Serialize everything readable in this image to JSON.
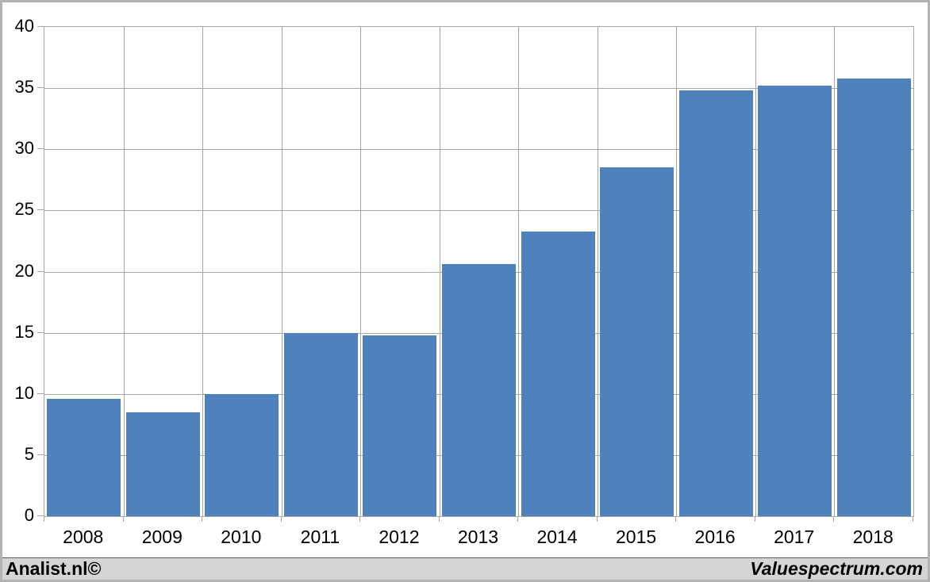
{
  "footer": {
    "left_brand": "Analist.nl©",
    "right_brand": "Valuespectrum.com"
  },
  "chart_data": {
    "type": "bar",
    "title": "",
    "xlabel": "",
    "ylabel": "",
    "categories": [
      "2008",
      "2009",
      "2010",
      "2011",
      "2012",
      "2013",
      "2014",
      "2015",
      "2016",
      "2017",
      "2018"
    ],
    "values": [
      9.6,
      8.5,
      10.0,
      15.0,
      14.8,
      20.6,
      23.3,
      28.5,
      34.8,
      35.2,
      35.8
    ],
    "ylim": [
      0,
      40
    ],
    "ytick_step": 5,
    "grid": true,
    "legend": "none",
    "colors": {
      "bar": "#4f81bd",
      "grid": "#a6a6a6",
      "axis": "#a6a6a6",
      "plot_background": "#ffffff",
      "frame_border": "#b3b3b3",
      "footer_background": "#d5d5d5",
      "footer_divider": "#595959",
      "text": "#000000"
    }
  }
}
